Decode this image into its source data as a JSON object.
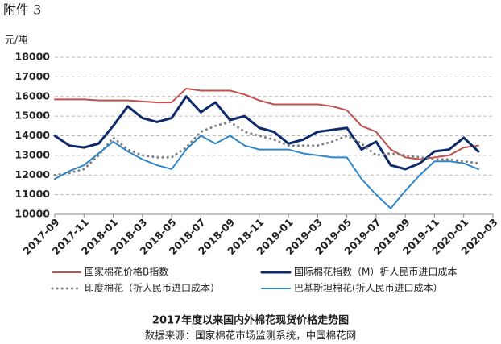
{
  "header": "附件 3",
  "chart_data": {
    "type": "line",
    "title": "2017年度以来国内外棉花现货价格走势图",
    "source": "数据来源：国家棉花市场监测系统，中国棉花网",
    "y_label": "元/吨",
    "categories": [
      "2017-09",
      null,
      "2017-11",
      null,
      "2018-01",
      null,
      "2018-03",
      null,
      "2018-05",
      null,
      "2018-07",
      null,
      "2018-09",
      null,
      "2018-11",
      null,
      "2019-01",
      null,
      "2019-03",
      null,
      "2019-05",
      null,
      "2019-07",
      null,
      "2019-09",
      null,
      "2019-11",
      null,
      "2020-01",
      null,
      "2020-03"
    ],
    "ylim": [
      10000,
      18000
    ],
    "yticks": [
      10000,
      11000,
      12000,
      13000,
      14000,
      15000,
      16000,
      17000,
      18000
    ],
    "grid": true,
    "series": [
      {
        "name": "国家棉花价格B指数",
        "color": "#c0504d",
        "width": 2,
        "dash": "solid",
        "values": [
          15850,
          15850,
          15850,
          15800,
          15800,
          15800,
          15750,
          15700,
          15700,
          16400,
          16300,
          16300,
          16300,
          16100,
          15800,
          15600,
          15600,
          15600,
          15600,
          15500,
          15300,
          14500,
          14200,
          13300,
          12900,
          12800,
          12900,
          13000,
          13400,
          13500,
          null
        ]
      },
      {
        "name": "国际棉花指数（M）折人民币进口成本",
        "color": "#0d2a6b",
        "width": 3,
        "dash": "solid",
        "values": [
          14000,
          13500,
          13400,
          13600,
          14500,
          15500,
          14900,
          14700,
          14900,
          16000,
          15200,
          15700,
          14800,
          15000,
          14400,
          14200,
          13600,
          13800,
          14200,
          14300,
          14400,
          13300,
          13700,
          12500,
          12300,
          12600,
          13200,
          13300,
          13900,
          13200,
          null
        ]
      },
      {
        "name": "印度棉花（折人民币进口成本）",
        "color": "#7f7f7f",
        "width": 3,
        "dash": "dotted",
        "values": [
          12000,
          12100,
          12300,
          13000,
          13900,
          13300,
          13000,
          12900,
          12900,
          13400,
          14200,
          14500,
          14700,
          14200,
          14000,
          13800,
          13500,
          13500,
          13500,
          13700,
          14000,
          13600,
          13000,
          13100,
          13000,
          12900,
          12800,
          12800,
          12700,
          12600,
          null
        ]
      },
      {
        "name": "巴基斯坦棉花(折人民币进口成本）",
        "color": "#2e86c8",
        "width": 2,
        "dash": "solid",
        "values": [
          11800,
          12200,
          12500,
          13100,
          13700,
          13200,
          12800,
          12500,
          12300,
          13300,
          14000,
          13600,
          14000,
          13500,
          13300,
          13300,
          13300,
          13100,
          13000,
          12900,
          12900,
          11800,
          11000,
          10300,
          11200,
          12000,
          12700,
          12700,
          12600,
          12300,
          null
        ]
      }
    ]
  }
}
